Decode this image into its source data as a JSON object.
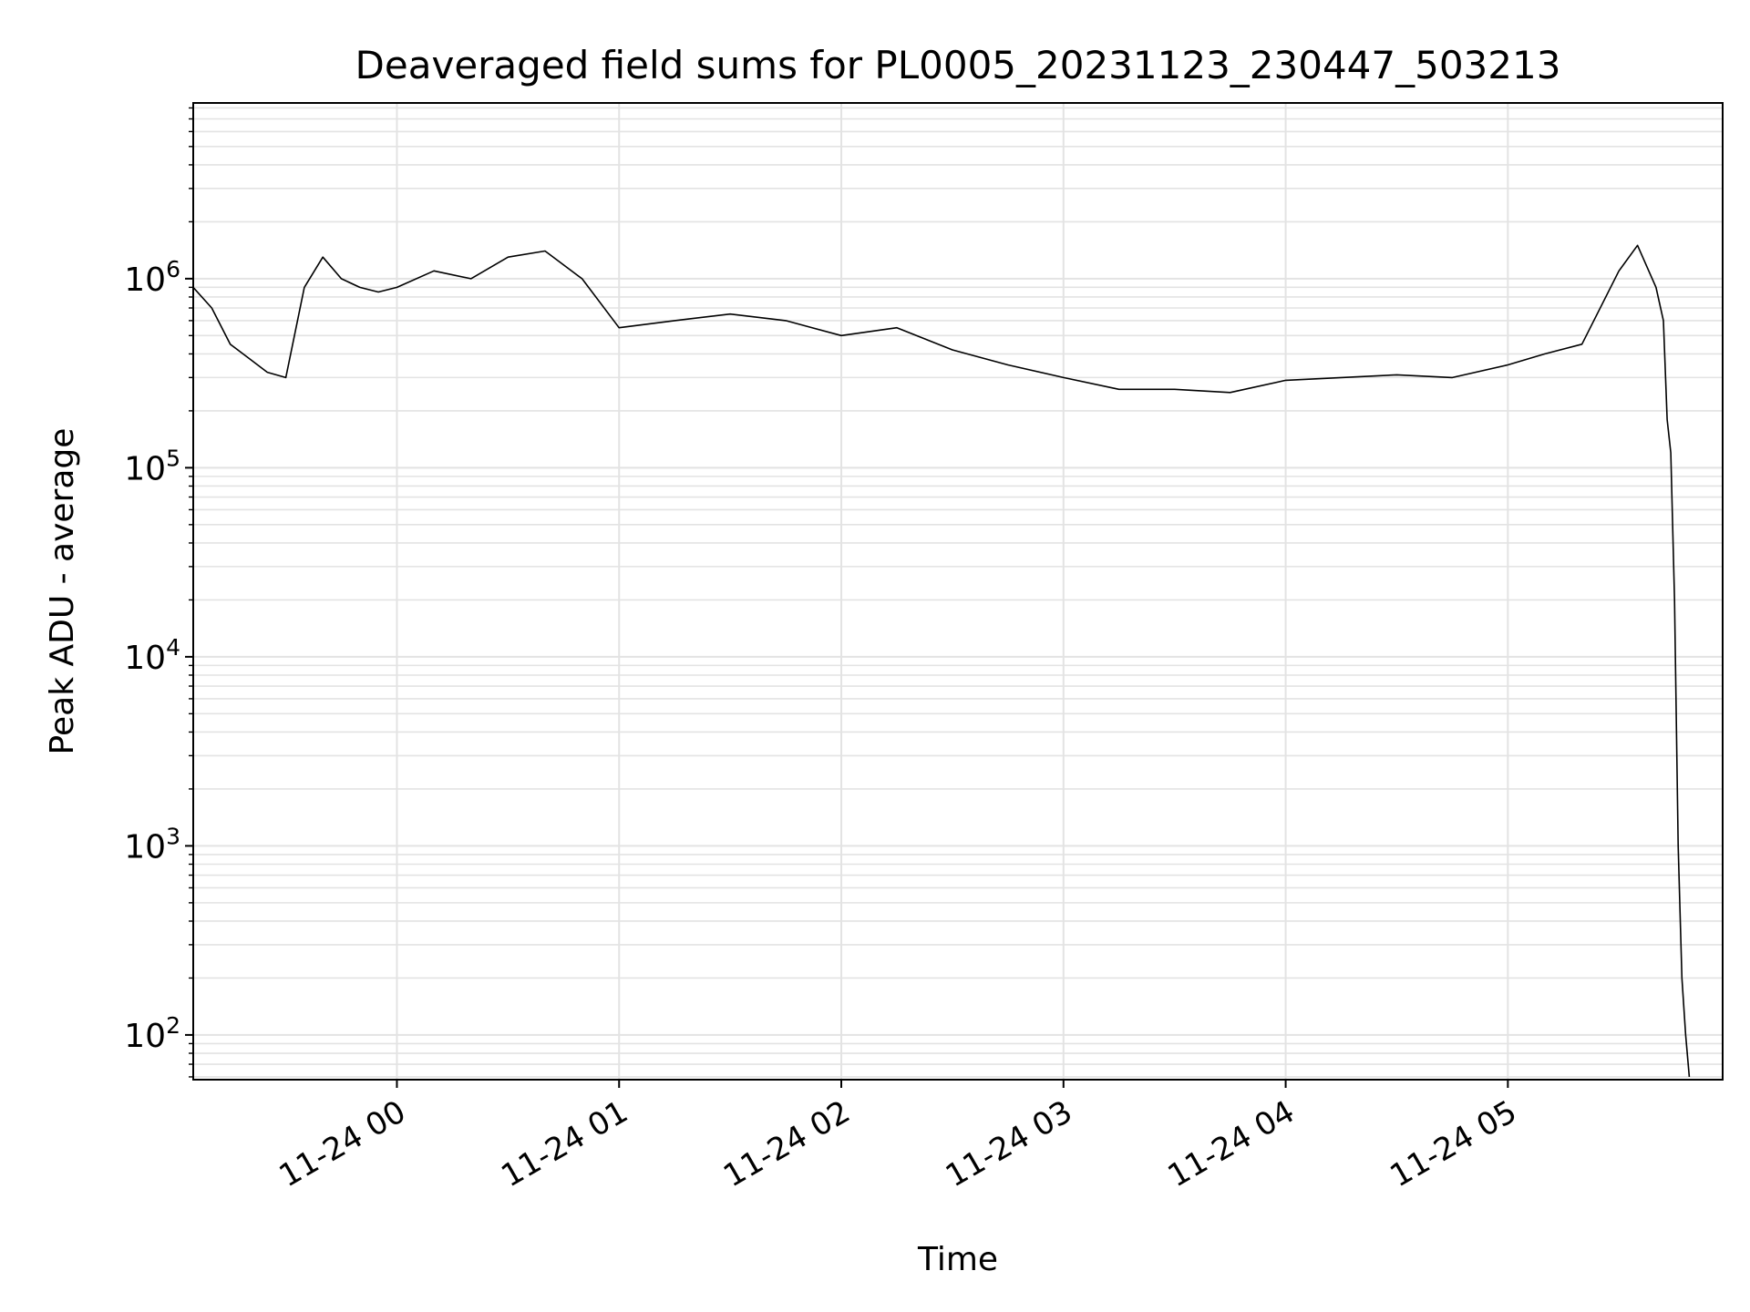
{
  "chart_data": {
    "type": "line",
    "title": "Deaveraged field sums for PL0005_20231123_230447_503213",
    "xlabel": "Time",
    "ylabel": "Peak ADU - average",
    "yscale": "log",
    "grid": true,
    "xlim": [
      "2023-11-23T23:05:00",
      "2023-11-24T05:58:00"
    ],
    "ylim": [
      58,
      8500000
    ],
    "x_ticks": [
      {
        "value": "2023-11-24T00:00:00",
        "label": "11-24 00"
      },
      {
        "value": "2023-11-24T01:00:00",
        "label": "11-24 01"
      },
      {
        "value": "2023-11-24T02:00:00",
        "label": "11-24 02"
      },
      {
        "value": "2023-11-24T03:00:00",
        "label": "11-24 03"
      },
      {
        "value": "2023-11-24T04:00:00",
        "label": "11-24 04"
      },
      {
        "value": "2023-11-24T05:00:00",
        "label": "11-24 05"
      }
    ],
    "y_ticks": [
      {
        "value": 100,
        "base": "10",
        "exp": "2"
      },
      {
        "value": 1000,
        "base": "10",
        "exp": "3"
      },
      {
        "value": 10000,
        "base": "10",
        "exp": "4"
      },
      {
        "value": 100000,
        "base": "10",
        "exp": "5"
      },
      {
        "value": 1000000,
        "base": "10",
        "exp": "6"
      }
    ],
    "colors": {
      "line": "#000000",
      "grid": "#e3e3e3",
      "axes": "#000000"
    },
    "series": [
      {
        "x": [
          "2023-11-23T23:05:00",
          "2023-11-23T23:10:00",
          "2023-11-23T23:15:00",
          "2023-11-23T23:20:00",
          "2023-11-23T23:25:00",
          "2023-11-23T23:30:00",
          "2023-11-23T23:35:00",
          "2023-11-23T23:40:00",
          "2023-11-23T23:45:00",
          "2023-11-23T23:50:00",
          "2023-11-23T23:55:00",
          "2023-11-24T00:00:00",
          "2023-11-24T00:10:00",
          "2023-11-24T00:20:00",
          "2023-11-24T00:30:00",
          "2023-11-24T00:40:00",
          "2023-11-24T00:50:00",
          "2023-11-24T01:00:00",
          "2023-11-24T01:15:00",
          "2023-11-24T01:30:00",
          "2023-11-24T01:45:00",
          "2023-11-24T02:00:00",
          "2023-11-24T02:15:00",
          "2023-11-24T02:30:00",
          "2023-11-24T02:45:00",
          "2023-11-24T03:00:00",
          "2023-11-24T03:15:00",
          "2023-11-24T03:30:00",
          "2023-11-24T03:45:00",
          "2023-11-24T04:00:00",
          "2023-11-24T04:15:00",
          "2023-11-24T04:30:00",
          "2023-11-24T04:45:00",
          "2023-11-24T05:00:00",
          "2023-11-24T05:10:00",
          "2023-11-24T05:20:00",
          "2023-11-24T05:30:00",
          "2023-11-24T05:35:00",
          "2023-11-24T05:40:00",
          "2023-11-24T05:42:00",
          "2023-11-24T05:43:00",
          "2023-11-24T05:44:00",
          "2023-11-24T05:45:00",
          "2023-11-24T05:46:00",
          "2023-11-24T05:47:00",
          "2023-11-24T05:48:00",
          "2023-11-24T05:49:00"
        ],
        "y": [
          900000,
          700000,
          450000,
          380000,
          320000,
          300000,
          900000,
          1300000,
          1000000,
          900000,
          850000,
          900000,
          1100000,
          1000000,
          1300000,
          1400000,
          1000000,
          550000,
          600000,
          650000,
          600000,
          500000,
          550000,
          420000,
          350000,
          300000,
          260000,
          260000,
          250000,
          290000,
          300000,
          310000,
          300000,
          350000,
          400000,
          450000,
          1100000,
          1500000,
          900000,
          600000,
          180000,
          120000,
          20000,
          1000,
          200,
          100,
          60
        ]
      }
    ]
  }
}
